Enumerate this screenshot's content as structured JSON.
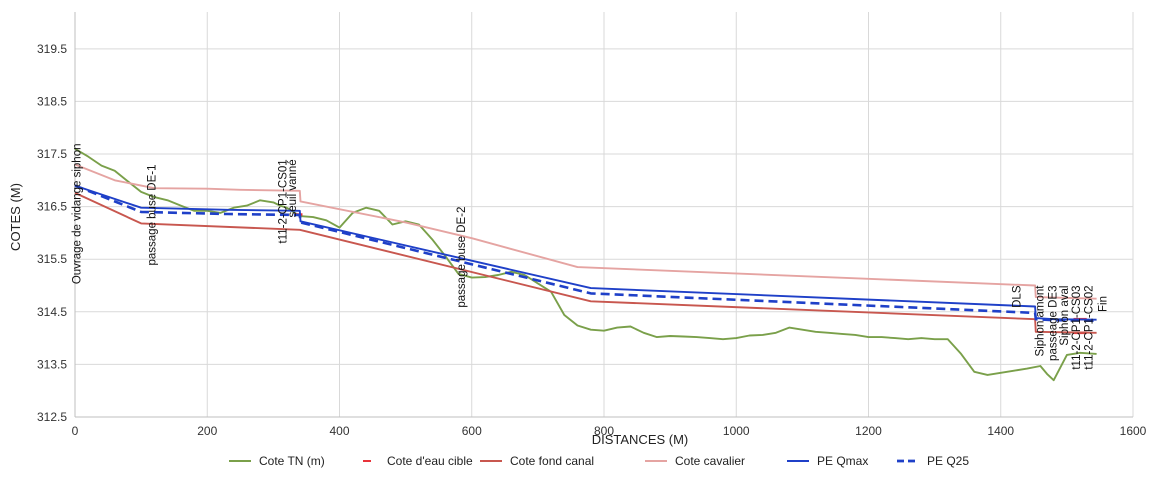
{
  "chart_data": {
    "type": "line",
    "xlabel": "DISTANCES (M)",
    "ylabel": "COTES (M)",
    "xlim": [
      0,
      1600
    ],
    "ylim": [
      312.5,
      320.2
    ],
    "x_ticks": [
      0,
      200,
      400,
      600,
      800,
      1000,
      1200,
      1400,
      1600
    ],
    "y_ticks": [
      312.5,
      313.5,
      314.5,
      315.5,
      316.5,
      317.5,
      318.5,
      319.5
    ],
    "x_tick_labels": [
      "0",
      "200",
      "400",
      "600",
      "800",
      "1000",
      "1200",
      "1400",
      "1600"
    ],
    "y_tick_labels": [
      "312.5",
      "313.5",
      "314.5",
      "315.5",
      "316.5",
      "317.5",
      "318.5",
      "319.5"
    ],
    "grid": true,
    "legend_position": "bottom",
    "annotations": [
      {
        "x": 8,
        "y": 317.7,
        "text": "Ouvrage de vidange siphon"
      },
      {
        "x": 122,
        "y": 317.3,
        "text": "passage buse DE-1"
      },
      {
        "x": 320,
        "y": 317.4,
        "text": "t11-2-CP1-CS01"
      },
      {
        "x": 334,
        "y": 317.4,
        "text": "seuil vanné"
      },
      {
        "x": 590,
        "y": 316.5,
        "text": "passage buse DE-2"
      },
      {
        "x": 1430,
        "y": 315.0,
        "text": "DLS"
      },
      {
        "x": 1465,
        "y": 315.0,
        "text": "Siphon amont"
      },
      {
        "x": 1484,
        "y": 315.0,
        "text": "passeage DE3"
      },
      {
        "x": 1502,
        "y": 315.0,
        "text": "Siphon aval"
      },
      {
        "x": 1520,
        "y": 315.0,
        "text": "t11-2-CP1-CS03"
      },
      {
        "x": 1539,
        "y": 315.0,
        "text": "t11-2-CP1-CS02"
      },
      {
        "x": 1560,
        "y": 314.8,
        "text": "Fin"
      }
    ],
    "series": [
      {
        "name": "Cote TN (m)",
        "color": "#7aa04a",
        "dash": "solid",
        "x": [
          0,
          20,
          40,
          60,
          80,
          100,
          120,
          140,
          160,
          180,
          200,
          220,
          240,
          260,
          280,
          300,
          310,
          320,
          340,
          360,
          380,
          400,
          420,
          440,
          460,
          480,
          500,
          520,
          540,
          560,
          580,
          600,
          620,
          640,
          660,
          680,
          700,
          720,
          740,
          760,
          780,
          800,
          820,
          840,
          860,
          880,
          900,
          920,
          940,
          960,
          980,
          1000,
          1020,
          1040,
          1060,
          1080,
          1100,
          1120,
          1140,
          1160,
          1180,
          1200,
          1220,
          1240,
          1260,
          1280,
          1300,
          1320,
          1340,
          1360,
          1380,
          1400,
          1420,
          1440,
          1460,
          1470,
          1480,
          1500,
          1520,
          1545
        ],
        "y": [
          317.6,
          317.45,
          317.28,
          317.18,
          316.98,
          316.78,
          316.68,
          316.62,
          316.52,
          316.42,
          316.42,
          316.38,
          316.48,
          316.52,
          316.62,
          316.58,
          316.52,
          316.48,
          316.32,
          316.3,
          316.24,
          316.1,
          316.38,
          316.48,
          316.42,
          316.16,
          316.22,
          316.16,
          315.88,
          315.56,
          315.22,
          315.15,
          315.16,
          315.2,
          315.26,
          315.2,
          315.04,
          314.88,
          314.44,
          314.24,
          314.16,
          314.14,
          314.2,
          314.22,
          314.1,
          314.02,
          314.04,
          314.03,
          314.02,
          314.0,
          313.98,
          314.0,
          314.05,
          314.06,
          314.1,
          314.2,
          314.16,
          314.12,
          314.1,
          314.08,
          314.06,
          314.02,
          314.02,
          314.0,
          313.98,
          314.0,
          313.98,
          313.98,
          313.7,
          313.36,
          313.3,
          313.34,
          313.38,
          313.42,
          313.47,
          313.32,
          313.2,
          313.68,
          313.72,
          313.7
        ]
      },
      {
        "name": "Cote d'eau cible",
        "color": "#e8333a",
        "dash": "segments",
        "x": [
          332,
          344,
          1510,
          1530,
          1510,
          1530
        ],
        "y": [
          316.35,
          316.35,
          314.36,
          314.36,
          314.1,
          314.1
        ]
      },
      {
        "name": "Cote fond canal",
        "color": "#c8574f",
        "dash": "solid",
        "x": [
          0,
          100,
          340,
          780,
          1452,
          1453,
          1545
        ],
        "y": [
          316.76,
          316.18,
          316.06,
          314.7,
          314.36,
          314.12,
          314.1
        ]
      },
      {
        "name": "Cote cavalier",
        "color": "#e5a4a2",
        "dash": "solid",
        "x": [
          0,
          60,
          120,
          200,
          250,
          340,
          341,
          500,
          600,
          760,
          1452,
          1453,
          1545
        ],
        "y": [
          317.3,
          317.0,
          316.85,
          316.84,
          316.82,
          316.8,
          316.6,
          316.2,
          315.9,
          315.35,
          315.0,
          314.78,
          314.75
        ]
      },
      {
        "name": "PE Qmax",
        "color": "#1f40c8",
        "dash": "solid",
        "x": [
          0,
          100,
          230,
          340,
          341,
          780,
          1452,
          1453,
          1480,
          1545
        ],
        "y": [
          316.9,
          316.48,
          316.44,
          316.42,
          316.22,
          314.95,
          314.6,
          314.38,
          314.36,
          314.35
        ]
      },
      {
        "name": "PE Q25",
        "color": "#1f40c8",
        "dash": "dashed",
        "x": [
          0,
          100,
          230,
          340,
          341,
          780,
          1452,
          1453,
          1480,
          1545
        ],
        "y": [
          316.9,
          316.4,
          316.36,
          316.34,
          316.2,
          314.85,
          314.48,
          314.36,
          314.34,
          314.33
        ]
      }
    ]
  }
}
